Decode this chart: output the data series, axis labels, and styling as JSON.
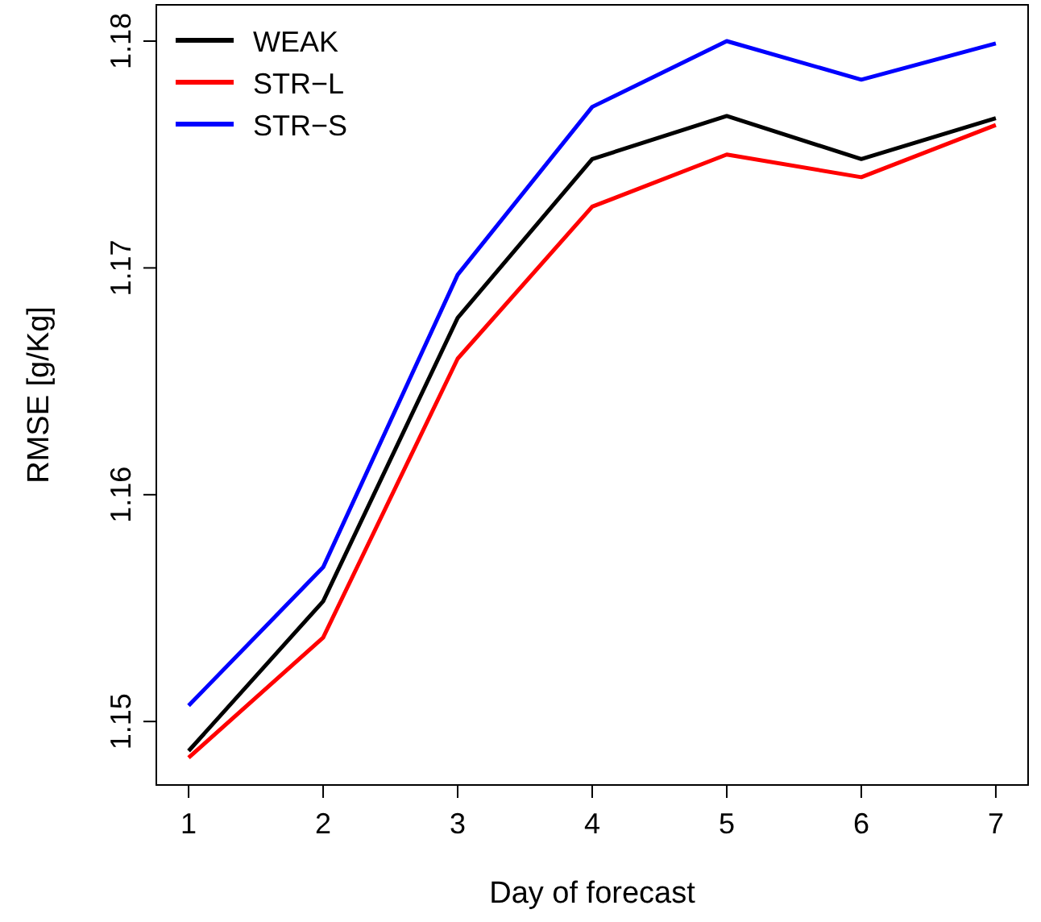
{
  "chart_data": {
    "type": "line",
    "xlabel": "Day of forecast",
    "ylabel": "RMSE [g/Kg]",
    "x": [
      1,
      2,
      3,
      4,
      5,
      6,
      7
    ],
    "series": [
      {
        "name": "WEAK",
        "color": "#000000",
        "values": [
          1.1487,
          1.1553,
          1.1678,
          1.1748,
          1.1767,
          1.1748,
          1.1766
        ]
      },
      {
        "name": "STR−L",
        "color": "#ff0000",
        "values": [
          1.1484,
          1.1537,
          1.166,
          1.1727,
          1.175,
          1.174,
          1.1763
        ]
      },
      {
        "name": "STR−S",
        "color": "#0000ff",
        "values": [
          1.1507,
          1.1568,
          1.1697,
          1.1771,
          1.18,
          1.1783,
          1.1799
        ]
      }
    ],
    "xlim": [
      0.76,
      7.24
    ],
    "ylim": [
      1.1472,
      1.1816
    ],
    "xticks": [
      1,
      2,
      3,
      4,
      5,
      6,
      7
    ],
    "yticks": [
      1.15,
      1.16,
      1.17,
      1.18
    ],
    "grid": false,
    "legend": "top left",
    "marker": "none",
    "line_style": "solid"
  }
}
